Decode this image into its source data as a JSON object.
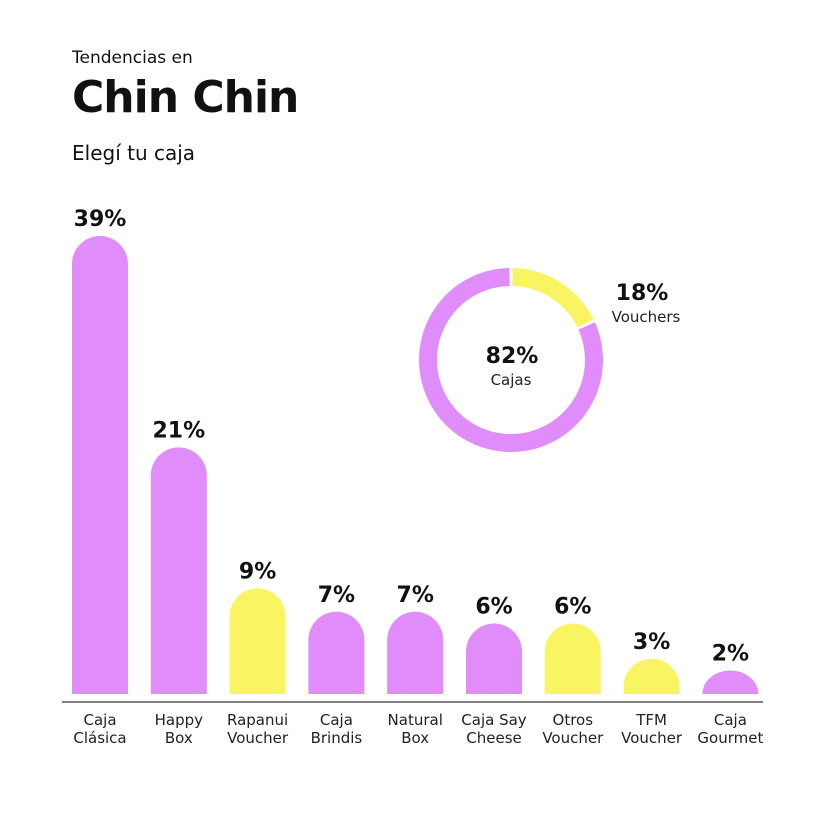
{
  "header": {
    "pre_title": "Tendencias en",
    "title": "Chin Chin",
    "subtitle": "Elegí tu caja"
  },
  "colors": {
    "caja": "#e08cfb",
    "voucher": "#f8f462",
    "axis": "#333333",
    "text": "#111111"
  },
  "chart_data": [
    {
      "type": "bar",
      "categories": [
        [
          "Caja",
          "Clásica"
        ],
        [
          "Happy",
          "Box"
        ],
        [
          "Rapanui",
          "Voucher"
        ],
        [
          "Caja",
          "Brindis"
        ],
        [
          "Natural",
          "Box"
        ],
        [
          "Caja Say",
          "Cheese"
        ],
        [
          "Otros",
          "Voucher"
        ],
        [
          "TFM",
          "Voucher"
        ],
        [
          "Caja",
          "Gourmet"
        ]
      ],
      "values": [
        39,
        21,
        9,
        7,
        7,
        6,
        6,
        3,
        2
      ],
      "value_labels": [
        "39%",
        "21%",
        "9%",
        "7%",
        "7%",
        "6%",
        "6%",
        "3%",
        "2%"
      ],
      "kinds": [
        "caja",
        "caja",
        "voucher",
        "caja",
        "caja",
        "caja",
        "voucher",
        "voucher",
        "caja"
      ],
      "ylim": [
        0,
        39
      ],
      "grid": false,
      "legend": "none"
    },
    {
      "type": "pie",
      "style": "donut",
      "slices": [
        {
          "kind": "voucher",
          "value": 18,
          "label": "18%",
          "name": "Vouchers"
        },
        {
          "kind": "caja",
          "value": 82,
          "label": "82%",
          "name": "Cajas"
        }
      ]
    }
  ]
}
